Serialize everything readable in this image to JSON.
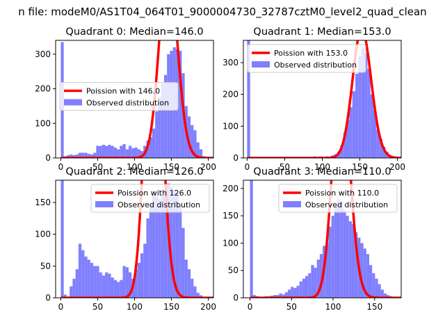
{
  "figure": {
    "suptitle": "n file: modeM0/AS1T04_064T01_9000004730_32787cztM0_level2_quad_clean"
  },
  "colors": {
    "hist": "#8080ff",
    "poisson": "#ff0000",
    "axis": "#000000"
  },
  "chart_data": [
    {
      "type": "bar",
      "title": "Quadrant 0: Median=146.0",
      "median": 146.0,
      "xlim": [
        -7,
        207
      ],
      "ylim": [
        0,
        340
      ],
      "xticks": [
        0,
        50,
        100,
        150,
        200
      ],
      "yticks": [
        0,
        100,
        200,
        300
      ],
      "bin_width": 4,
      "bins": [
        [
          0,
          335
        ],
        [
          4,
          5
        ],
        [
          8,
          8
        ],
        [
          12,
          10
        ],
        [
          16,
          8
        ],
        [
          20,
          10
        ],
        [
          24,
          15
        ],
        [
          28,
          15
        ],
        [
          32,
          15
        ],
        [
          36,
          12
        ],
        [
          40,
          10
        ],
        [
          44,
          15
        ],
        [
          48,
          35
        ],
        [
          52,
          35
        ],
        [
          56,
          38
        ],
        [
          60,
          35
        ],
        [
          64,
          38
        ],
        [
          68,
          35
        ],
        [
          72,
          30
        ],
        [
          76,
          25
        ],
        [
          80,
          35
        ],
        [
          84,
          40
        ],
        [
          88,
          25
        ],
        [
          92,
          35
        ],
        [
          96,
          28
        ],
        [
          100,
          30
        ],
        [
          104,
          25
        ],
        [
          108,
          20
        ],
        [
          112,
          35
        ],
        [
          116,
          50
        ],
        [
          120,
          60
        ],
        [
          124,
          85
        ],
        [
          128,
          135
        ],
        [
          132,
          175
        ],
        [
          136,
          215
        ],
        [
          140,
          240
        ],
        [
          144,
          300
        ],
        [
          148,
          310
        ],
        [
          152,
          320
        ],
        [
          156,
          315
        ],
        [
          160,
          310
        ],
        [
          164,
          245
        ],
        [
          168,
          150
        ],
        [
          172,
          120
        ],
        [
          176,
          95
        ],
        [
          180,
          80
        ],
        [
          184,
          45
        ],
        [
          188,
          25
        ],
        [
          192,
          5
        ]
      ],
      "legend": {
        "poisson": "Poission with 146.0",
        "observed": "Observed distribution",
        "loc": "center-left"
      }
    },
    {
      "type": "bar",
      "title": "Quadrant 1: Median=153.0",
      "median": 153.0,
      "xlim": [
        -5,
        205
      ],
      "ylim": [
        0,
        370
      ],
      "xticks": [
        0,
        50,
        100,
        150,
        200
      ],
      "yticks": [
        0,
        100,
        200,
        300
      ],
      "bin_width": 4,
      "bins": [
        [
          0,
          370
        ],
        [
          88,
          5
        ],
        [
          92,
          3
        ],
        [
          96,
          5
        ],
        [
          100,
          3
        ],
        [
          104,
          5
        ],
        [
          108,
          3
        ],
        [
          112,
          8
        ],
        [
          116,
          12
        ],
        [
          120,
          20
        ],
        [
          124,
          40
        ],
        [
          128,
          80
        ],
        [
          132,
          120
        ],
        [
          136,
          160
        ],
        [
          140,
          210
        ],
        [
          144,
          265
        ],
        [
          148,
          320
        ],
        [
          152,
          345
        ],
        [
          156,
          330
        ],
        [
          160,
          280
        ],
        [
          164,
          200
        ],
        [
          168,
          150
        ],
        [
          172,
          90
        ],
        [
          176,
          60
        ],
        [
          180,
          35
        ],
        [
          184,
          20
        ],
        [
          188,
          8
        ],
        [
          192,
          5
        ]
      ],
      "legend": {
        "poisson": "Poission with 153.0",
        "observed": "Observed distribution",
        "loc": "upper-left"
      }
    },
    {
      "type": "bar",
      "title": "Quadrant 2: Median=126.0",
      "median": 126.0,
      "xlim": [
        -7,
        207
      ],
      "ylim": [
        0,
        185
      ],
      "xticks": [
        0,
        50,
        100,
        150,
        200
      ],
      "yticks": [
        0,
        50,
        100,
        150
      ],
      "bin_width": 4,
      "bins": [
        [
          0,
          185
        ],
        [
          4,
          5
        ],
        [
          8,
          2
        ],
        [
          12,
          18
        ],
        [
          16,
          30
        ],
        [
          20,
          45
        ],
        [
          24,
          85
        ],
        [
          28,
          75
        ],
        [
          32,
          65
        ],
        [
          36,
          60
        ],
        [
          40,
          55
        ],
        [
          44,
          50
        ],
        [
          48,
          50
        ],
        [
          52,
          40
        ],
        [
          56,
          35
        ],
        [
          60,
          40
        ],
        [
          64,
          38
        ],
        [
          68,
          32
        ],
        [
          72,
          28
        ],
        [
          76,
          25
        ],
        [
          80,
          28
        ],
        [
          84,
          50
        ],
        [
          88,
          48
        ],
        [
          92,
          40
        ],
        [
          96,
          30
        ],
        [
          100,
          45
        ],
        [
          104,
          55
        ],
        [
          108,
          70
        ],
        [
          112,
          85
        ],
        [
          116,
          125
        ],
        [
          120,
          150
        ],
        [
          124,
          165
        ],
        [
          128,
          160
        ],
        [
          132,
          155
        ],
        [
          136,
          160
        ],
        [
          140,
          170
        ],
        [
          144,
          180
        ],
        [
          148,
          175
        ],
        [
          152,
          170
        ],
        [
          156,
          165
        ],
        [
          160,
          145
        ],
        [
          164,
          110
        ],
        [
          168,
          60
        ],
        [
          172,
          45
        ],
        [
          176,
          30
        ],
        [
          180,
          18
        ],
        [
          184,
          8
        ],
        [
          188,
          4
        ]
      ],
      "legend": {
        "poisson": "Poission with 126.0",
        "observed": "Observed distribution",
        "loc": "upper-right"
      }
    },
    {
      "type": "bar",
      "title": "Quadrant 3: Median=110.0",
      "median": 110.0,
      "xlim": [
        -8,
        182
      ],
      "ylim": [
        0,
        215
      ],
      "xticks": [
        0,
        50,
        100,
        150
      ],
      "yticks": [
        0,
        50,
        100,
        150,
        200
      ],
      "bin_width": 3.5,
      "bins": [
        [
          0,
          215
        ],
        [
          3.5,
          5
        ],
        [
          7,
          3
        ],
        [
          10.5,
          2
        ],
        [
          14,
          2
        ],
        [
          17.5,
          3
        ],
        [
          21,
          3
        ],
        [
          24.5,
          4
        ],
        [
          28,
          5
        ],
        [
          31.5,
          5
        ],
        [
          35,
          8
        ],
        [
          38.5,
          6
        ],
        [
          42,
          10
        ],
        [
          45.5,
          15
        ],
        [
          49,
          20
        ],
        [
          52.5,
          18
        ],
        [
          56,
          22
        ],
        [
          59.5,
          30
        ],
        [
          63,
          35
        ],
        [
          66.5,
          40
        ],
        [
          70,
          45
        ],
        [
          73.5,
          60
        ],
        [
          77,
          55
        ],
        [
          80.5,
          70
        ],
        [
          84,
          80
        ],
        [
          87.5,
          95
        ],
        [
          91,
          100
        ],
        [
          94.5,
          130
        ],
        [
          98,
          150
        ],
        [
          101.5,
          170
        ],
        [
          105,
          180
        ],
        [
          108.5,
          175
        ],
        [
          112,
          160
        ],
        [
          115.5,
          150
        ],
        [
          119,
          140
        ],
        [
          122.5,
          135
        ],
        [
          126,
          120
        ],
        [
          129.5,
          110
        ],
        [
          133,
          100
        ],
        [
          136.5,
          90
        ],
        [
          140,
          80
        ],
        [
          143.5,
          60
        ],
        [
          147,
          45
        ],
        [
          150.5,
          35
        ],
        [
          154,
          25
        ],
        [
          157.5,
          15
        ],
        [
          161,
          8
        ],
        [
          164.5,
          5
        ],
        [
          168,
          3
        ]
      ],
      "legend": {
        "poisson": "Poission with 110.0",
        "observed": "Observed distribution",
        "loc": "upper-right"
      }
    }
  ]
}
